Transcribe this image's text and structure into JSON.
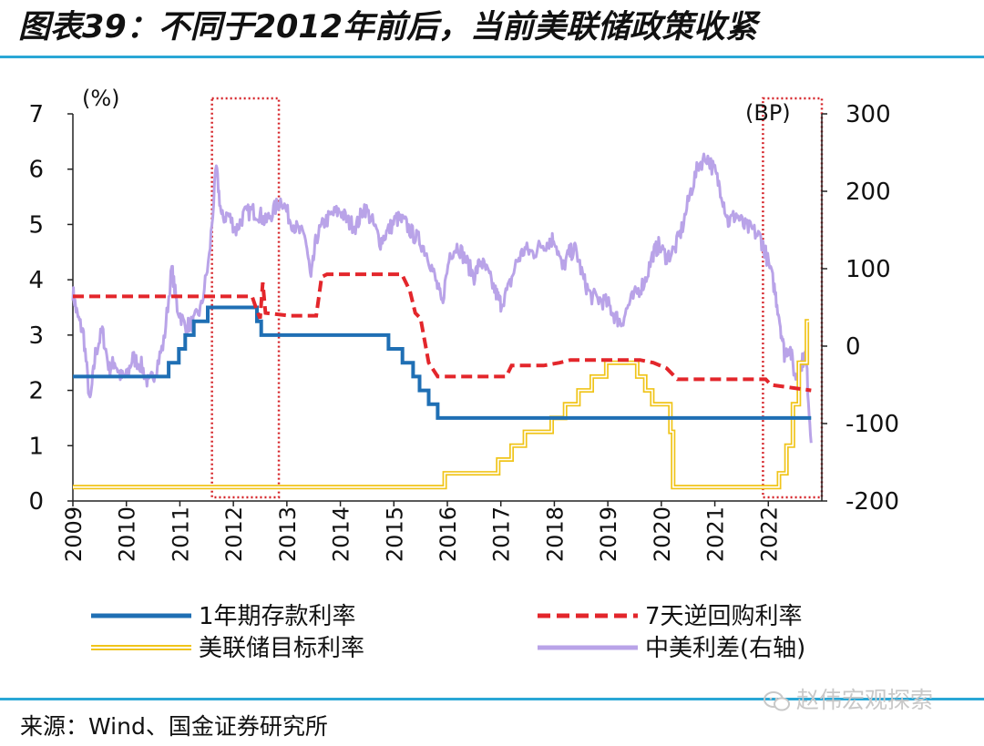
{
  "title": "图表39：不同于2012年前后，当前美联储政策收紧",
  "source": "来源：Wind、国金证券研究所",
  "watermark": "赵伟宏观探索",
  "chart_data": {
    "type": "line",
    "y_left": {
      "label": "(%)",
      "lim": [
        0,
        7
      ],
      "ticks": [
        "0",
        "1",
        "2",
        "3",
        "4",
        "5",
        "6",
        "7"
      ]
    },
    "y_right": {
      "label": "(BP)",
      "lim": [
        -200,
        300
      ],
      "ticks": [
        "-200",
        "-100",
        "0",
        "100",
        "200",
        "300"
      ]
    },
    "x": {
      "lim": [
        2009,
        2023
      ],
      "ticks": [
        "2009",
        "2010",
        "2011",
        "2012",
        "2013",
        "2014",
        "2015",
        "2016",
        "2017",
        "2018",
        "2019",
        "2020",
        "2021",
        "2022"
      ]
    },
    "highlight_boxes": [
      {
        "from": 2011.6,
        "to": 2012.85
      },
      {
        "from": 2021.9,
        "to": 2023.0
      }
    ],
    "series": [
      {
        "name": "1年期存款利率",
        "axis": "left",
        "color": "#1f6fb4",
        "style": "step",
        "points": [
          [
            2009.0,
            2.25
          ],
          [
            2010.79,
            2.25
          ],
          [
            2010.79,
            2.5
          ],
          [
            2010.98,
            2.5
          ],
          [
            2010.98,
            2.75
          ],
          [
            2011.1,
            2.75
          ],
          [
            2011.1,
            3.0
          ],
          [
            2011.26,
            3.0
          ],
          [
            2011.26,
            3.25
          ],
          [
            2011.52,
            3.25
          ],
          [
            2011.52,
            3.5
          ],
          [
            2012.44,
            3.5
          ],
          [
            2012.44,
            3.25
          ],
          [
            2012.52,
            3.25
          ],
          [
            2012.52,
            3.0
          ],
          [
            2014.9,
            3.0
          ],
          [
            2014.9,
            2.75
          ],
          [
            2015.16,
            2.75
          ],
          [
            2015.16,
            2.5
          ],
          [
            2015.36,
            2.5
          ],
          [
            2015.36,
            2.25
          ],
          [
            2015.48,
            2.25
          ],
          [
            2015.48,
            2.0
          ],
          [
            2015.65,
            2.0
          ],
          [
            2015.65,
            1.75
          ],
          [
            2015.82,
            1.75
          ],
          [
            2015.82,
            1.5
          ],
          [
            2022.8,
            1.5
          ]
        ]
      },
      {
        "name": "7天逆回购利率",
        "axis": "left",
        "color": "#e3262b",
        "style": "dashed",
        "points": [
          [
            2009.0,
            3.7
          ],
          [
            2012.35,
            3.7
          ],
          [
            2012.42,
            3.5
          ],
          [
            2012.5,
            3.3
          ],
          [
            2012.55,
            3.95
          ],
          [
            2012.6,
            3.4
          ],
          [
            2013.05,
            3.35
          ],
          [
            2013.55,
            3.35
          ],
          [
            2013.65,
            4.05
          ],
          [
            2013.75,
            4.1
          ],
          [
            2015.15,
            4.1
          ],
          [
            2015.3,
            3.8
          ],
          [
            2015.4,
            3.4
          ],
          [
            2015.5,
            3.3
          ],
          [
            2015.65,
            2.5
          ],
          [
            2015.82,
            2.25
          ],
          [
            2017.1,
            2.25
          ],
          [
            2017.2,
            2.45
          ],
          [
            2017.8,
            2.45
          ],
          [
            2018.1,
            2.5
          ],
          [
            2018.3,
            2.55
          ],
          [
            2019.6,
            2.55
          ],
          [
            2019.85,
            2.5
          ],
          [
            2020.1,
            2.4
          ],
          [
            2020.3,
            2.2
          ],
          [
            2021.95,
            2.2
          ],
          [
            2022.05,
            2.1
          ],
          [
            2022.8,
            2.0
          ]
        ]
      },
      {
        "name": "美联储目标利率",
        "axis": "left",
        "color": "#f0c419",
        "style": "double-step",
        "points": [
          [
            2009.0,
            0.25
          ],
          [
            2015.95,
            0.25
          ],
          [
            2015.95,
            0.5
          ],
          [
            2016.95,
            0.5
          ],
          [
            2016.95,
            0.75
          ],
          [
            2017.2,
            0.75
          ],
          [
            2017.2,
            1.0
          ],
          [
            2017.45,
            1.0
          ],
          [
            2017.45,
            1.25
          ],
          [
            2017.95,
            1.25
          ],
          [
            2017.95,
            1.5
          ],
          [
            2018.2,
            1.5
          ],
          [
            2018.2,
            1.75
          ],
          [
            2018.45,
            1.75
          ],
          [
            2018.45,
            2.0
          ],
          [
            2018.7,
            2.0
          ],
          [
            2018.7,
            2.25
          ],
          [
            2018.97,
            2.25
          ],
          [
            2018.97,
            2.5
          ],
          [
            2019.55,
            2.5
          ],
          [
            2019.55,
            2.25
          ],
          [
            2019.7,
            2.25
          ],
          [
            2019.7,
            2.0
          ],
          [
            2019.83,
            2.0
          ],
          [
            2019.83,
            1.75
          ],
          [
            2020.17,
            1.75
          ],
          [
            2020.17,
            1.25
          ],
          [
            2020.22,
            1.25
          ],
          [
            2020.22,
            0.25
          ],
          [
            2022.2,
            0.25
          ],
          [
            2022.2,
            0.5
          ],
          [
            2022.34,
            0.5
          ],
          [
            2022.34,
            1.0
          ],
          [
            2022.46,
            1.0
          ],
          [
            2022.46,
            1.75
          ],
          [
            2022.57,
            1.75
          ],
          [
            2022.57,
            2.5
          ],
          [
            2022.72,
            2.5
          ],
          [
            2022.72,
            3.25
          ],
          [
            2022.76,
            3.25
          ]
        ]
      },
      {
        "name": "中美利差(右轴)",
        "axis": "right",
        "color": "#b9a3e8",
        "style": "noisy",
        "points": [
          [
            2009.0,
            70
          ],
          [
            2009.08,
            40
          ],
          [
            2009.2,
            15
          ],
          [
            2009.32,
            -75
          ],
          [
            2009.42,
            -10
          ],
          [
            2009.55,
            20
          ],
          [
            2009.68,
            -30
          ],
          [
            2009.78,
            -20
          ],
          [
            2009.9,
            -40
          ],
          [
            2010.0,
            -40
          ],
          [
            2010.12,
            -15
          ],
          [
            2010.28,
            -25
          ],
          [
            2010.42,
            -50
          ],
          [
            2010.55,
            -30
          ],
          [
            2010.7,
            5
          ],
          [
            2010.85,
            100
          ],
          [
            2010.95,
            50
          ],
          [
            2011.1,
            25
          ],
          [
            2011.25,
            30
          ],
          [
            2011.4,
            50
          ],
          [
            2011.55,
            115
          ],
          [
            2011.68,
            230
          ],
          [
            2011.78,
            165
          ],
          [
            2011.9,
            170
          ],
          [
            2012.05,
            150
          ],
          [
            2012.2,
            170
          ],
          [
            2012.35,
            175
          ],
          [
            2012.5,
            170
          ],
          [
            2012.6,
            160
          ],
          [
            2012.75,
            175
          ],
          [
            2012.9,
            190
          ],
          [
            2013.05,
            165
          ],
          [
            2013.2,
            150
          ],
          [
            2013.35,
            140
          ],
          [
            2013.45,
            85
          ],
          [
            2013.55,
            140
          ],
          [
            2013.7,
            160
          ],
          [
            2013.85,
            170
          ],
          [
            2014.0,
            175
          ],
          [
            2014.15,
            160
          ],
          [
            2014.3,
            155
          ],
          [
            2014.45,
            180
          ],
          [
            2014.6,
            160
          ],
          [
            2014.75,
            135
          ],
          [
            2014.9,
            150
          ],
          [
            2015.05,
            165
          ],
          [
            2015.2,
            160
          ],
          [
            2015.35,
            145
          ],
          [
            2015.5,
            135
          ],
          [
            2015.65,
            115
          ],
          [
            2015.8,
            80
          ],
          [
            2015.9,
            55
          ],
          [
            2016.05,
            120
          ],
          [
            2016.2,
            130
          ],
          [
            2016.35,
            110
          ],
          [
            2016.5,
            90
          ],
          [
            2016.62,
            110
          ],
          [
            2016.75,
            95
          ],
          [
            2016.9,
            70
          ],
          [
            2017.0,
            55
          ],
          [
            2017.15,
            75
          ],
          [
            2017.3,
            110
          ],
          [
            2017.45,
            125
          ],
          [
            2017.6,
            120
          ],
          [
            2017.75,
            130
          ],
          [
            2017.9,
            135
          ],
          [
            2018.0,
            140
          ],
          [
            2018.15,
            100
          ],
          [
            2018.28,
            120
          ],
          [
            2018.4,
            125
          ],
          [
            2018.55,
            85
          ],
          [
            2018.68,
            65
          ],
          [
            2018.85,
            60
          ],
          [
            2019.0,
            55
          ],
          [
            2019.12,
            40
          ],
          [
            2019.25,
            30
          ],
          [
            2019.4,
            55
          ],
          [
            2019.55,
            70
          ],
          [
            2019.7,
            85
          ],
          [
            2019.85,
            120
          ],
          [
            2019.95,
            130
          ],
          [
            2020.1,
            115
          ],
          [
            2020.25,
            125
          ],
          [
            2020.4,
            155
          ],
          [
            2020.55,
            200
          ],
          [
            2020.7,
            235
          ],
          [
            2020.85,
            245
          ],
          [
            2021.0,
            225
          ],
          [
            2021.12,
            200
          ],
          [
            2021.25,
            160
          ],
          [
            2021.4,
            170
          ],
          [
            2021.55,
            155
          ],
          [
            2021.7,
            150
          ],
          [
            2021.85,
            140
          ],
          [
            2021.95,
            120
          ],
          [
            2022.1,
            80
          ],
          [
            2022.2,
            40
          ],
          [
            2022.3,
            -10
          ],
          [
            2022.4,
            0
          ],
          [
            2022.5,
            -40
          ],
          [
            2022.6,
            -25
          ],
          [
            2022.7,
            -10
          ],
          [
            2022.8,
            -125
          ]
        ]
      }
    ],
    "legend": {
      "placement": "bottom",
      "columns": 2
    },
    "grid": false
  }
}
